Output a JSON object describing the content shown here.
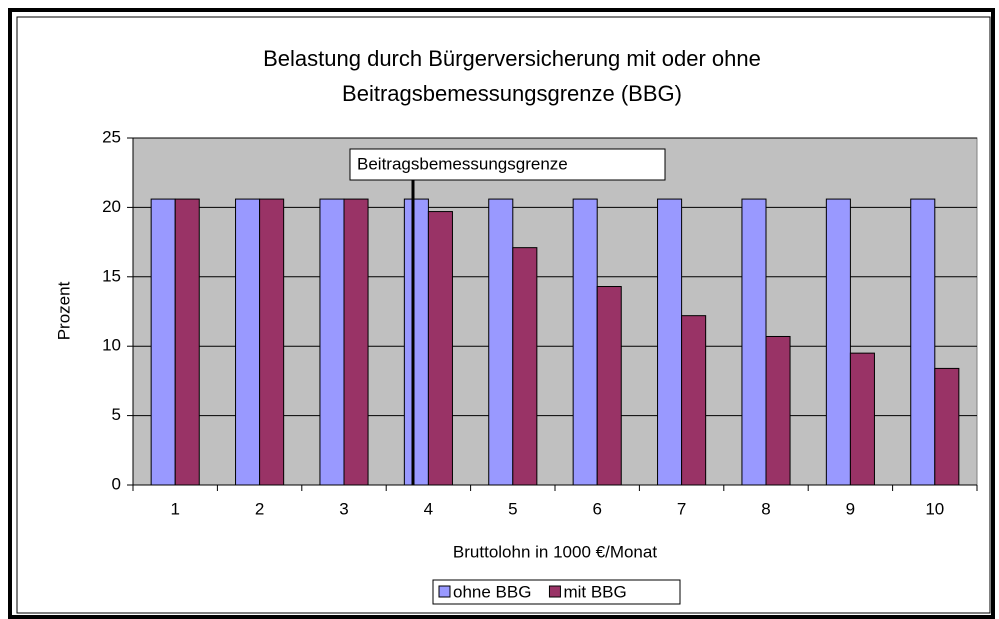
{
  "chart_data": {
    "type": "bar",
    "title": [
      "Belastung durch Bürgerversicherung mit oder ohne",
      "Beitragsbemessungsgrenze (BBG)"
    ],
    "x_label": "Bruttolohn in 1000 €/Monat",
    "y_label": "Prozent",
    "annotation": "Beitragsbemessungsgrenze",
    "categories": [
      "1",
      "2",
      "3",
      "4",
      "5",
      "6",
      "7",
      "8",
      "9",
      "10"
    ],
    "series": [
      {
        "name": "ohne BBG",
        "color": "#9999ff",
        "values": [
          20.6,
          20.6,
          20.6,
          20.6,
          20.6,
          20.6,
          20.6,
          20.6,
          20.6,
          20.6
        ]
      },
      {
        "name": "mit BBG",
        "color": "#993366",
        "values": [
          20.6,
          20.6,
          20.6,
          19.7,
          17.1,
          14.3,
          12.2,
          10.7,
          9.5,
          8.4
        ]
      }
    ],
    "ylim": [
      0,
      25
    ],
    "yticks": [
      0,
      5,
      10,
      15,
      20,
      25
    ],
    "grid": true,
    "legend": "bottom"
  }
}
